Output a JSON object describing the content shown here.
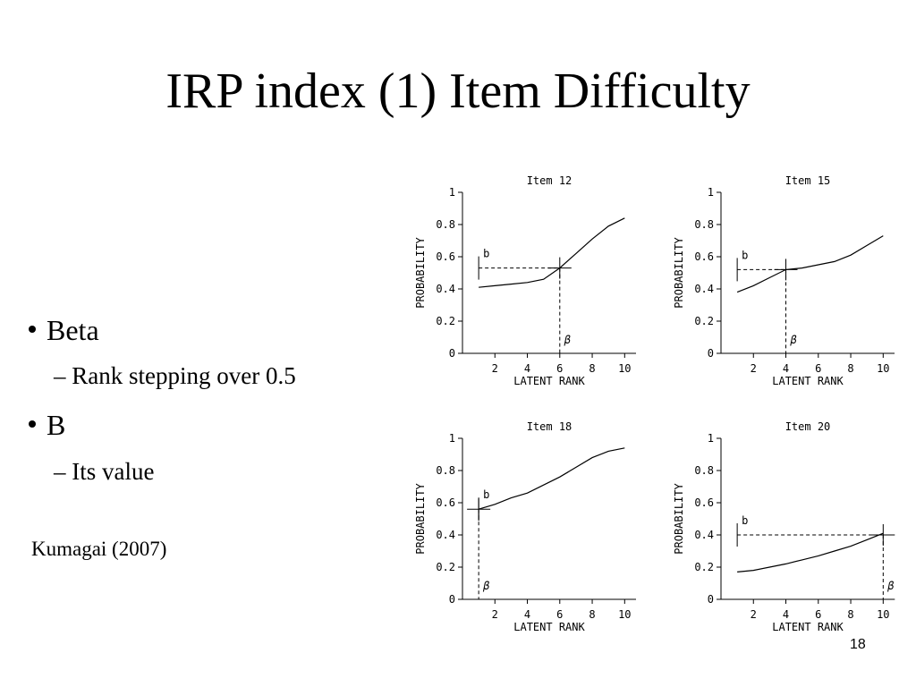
{
  "title": "IRP index (1) Item Difficulty",
  "bullets": [
    {
      "text": "Beta",
      "sub": "– Rank stepping over 0.5"
    },
    {
      "text": "B",
      "sub": "– Its value"
    }
  ],
  "citation": "Kumagai (2007)",
  "page_number": "18",
  "chart_data": [
    {
      "type": "line",
      "title": "Item 12",
      "xlabel": "LATENT RANK",
      "ylabel": "PROBABILITY",
      "x": [
        1,
        2,
        3,
        4,
        5,
        6,
        7,
        8,
        9,
        10
      ],
      "values": [
        0.41,
        0.42,
        0.43,
        0.44,
        0.46,
        0.53,
        0.62,
        0.71,
        0.79,
        0.84
      ],
      "xlim": [
        0,
        10.7
      ],
      "ylim": [
        0,
        1
      ],
      "xticks": [
        2,
        4,
        6,
        8,
        10
      ],
      "yticks": [
        0,
        0.2,
        0.4,
        0.6,
        0.8,
        1
      ],
      "annotations": {
        "b": {
          "label": "b",
          "value": 0.53
        },
        "beta": {
          "label": "β",
          "value": 6
        }
      },
      "color": "#000000"
    },
    {
      "type": "line",
      "title": "Item 15",
      "xlabel": "LATENT RANK",
      "ylabel": "PROBABILITY",
      "x": [
        1,
        2,
        3,
        4,
        5,
        6,
        7,
        8,
        9,
        10
      ],
      "values": [
        0.38,
        0.42,
        0.47,
        0.52,
        0.53,
        0.55,
        0.57,
        0.61,
        0.67,
        0.73
      ],
      "xlim": [
        0,
        10.7
      ],
      "ylim": [
        0,
        1
      ],
      "xticks": [
        2,
        4,
        6,
        8,
        10
      ],
      "yticks": [
        0,
        0.2,
        0.4,
        0.6,
        0.8,
        1
      ],
      "annotations": {
        "b": {
          "label": "b",
          "value": 0.52
        },
        "beta": {
          "label": "β",
          "value": 4
        }
      },
      "color": "#000000"
    },
    {
      "type": "line",
      "title": "Item 18",
      "xlabel": "LATENT RANK",
      "ylabel": "PROBABILITY",
      "x": [
        1,
        2,
        3,
        4,
        5,
        6,
        7,
        8,
        9,
        10
      ],
      "values": [
        0.56,
        0.59,
        0.63,
        0.66,
        0.71,
        0.76,
        0.82,
        0.88,
        0.92,
        0.94
      ],
      "xlim": [
        0,
        10.7
      ],
      "ylim": [
        0,
        1
      ],
      "xticks": [
        2,
        4,
        6,
        8,
        10
      ],
      "yticks": [
        0,
        0.2,
        0.4,
        0.6,
        0.8,
        1
      ],
      "annotations": {
        "b": {
          "label": "b",
          "value": 0.56
        },
        "beta": {
          "label": "β",
          "value": 1
        }
      },
      "color": "#000000"
    },
    {
      "type": "line",
      "title": "Item 20",
      "xlabel": "LATENT RANK",
      "ylabel": "PROBABILITY",
      "x": [
        1,
        2,
        3,
        4,
        5,
        6,
        7,
        8,
        9,
        10
      ],
      "values": [
        0.17,
        0.18,
        0.2,
        0.22,
        0.245,
        0.27,
        0.3,
        0.33,
        0.37,
        0.41
      ],
      "xlim": [
        0,
        10.7
      ],
      "ylim": [
        0,
        1
      ],
      "xticks": [
        2,
        4,
        6,
        8,
        10
      ],
      "yticks": [
        0,
        0.2,
        0.4,
        0.6,
        0.8,
        1
      ],
      "annotations": {
        "b": {
          "label": "b",
          "value": 0.4
        },
        "beta": {
          "label": "β",
          "value": 10
        }
      },
      "color": "#000000"
    }
  ]
}
